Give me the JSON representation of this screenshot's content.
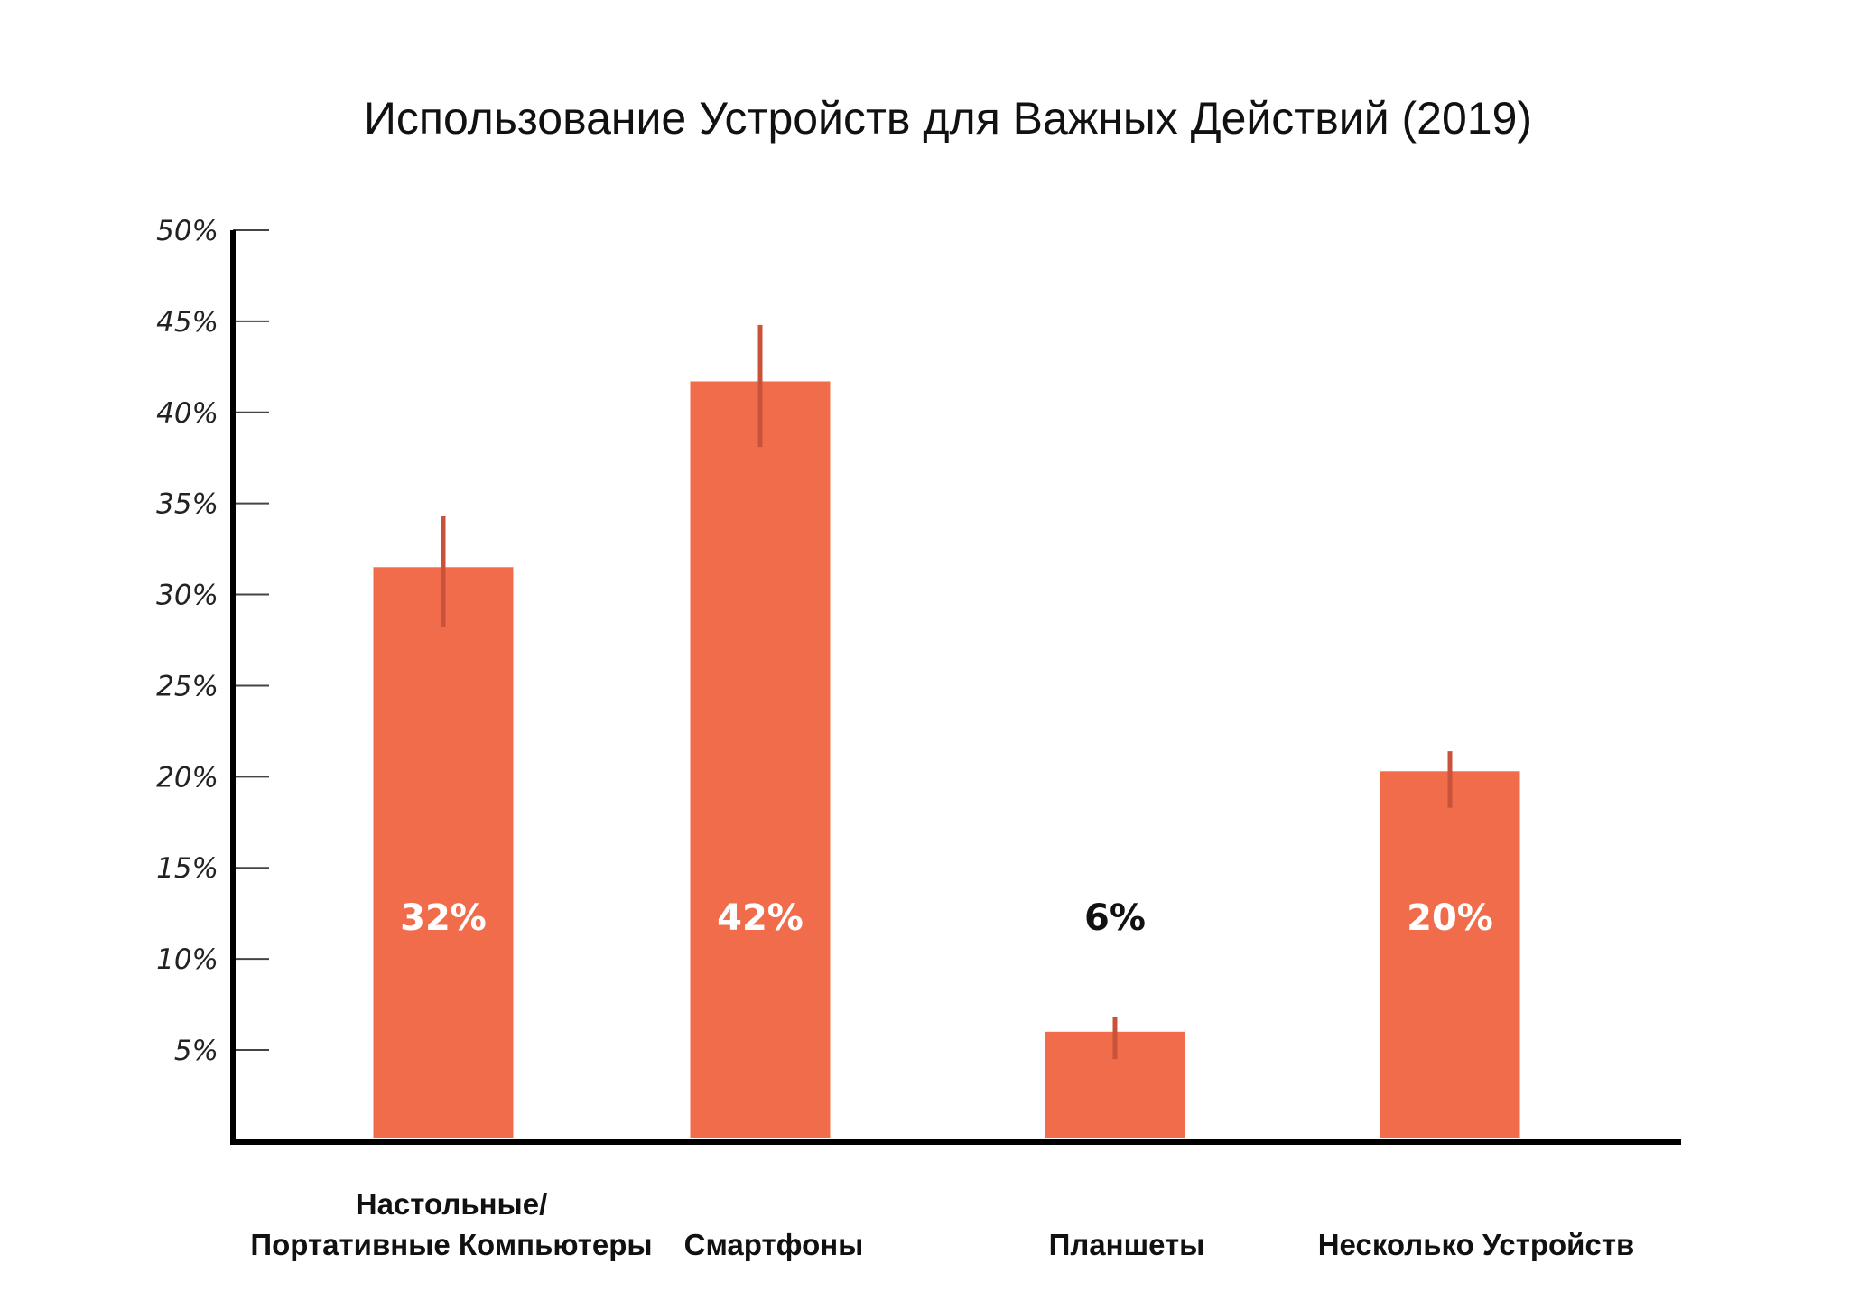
{
  "chart_data": {
    "type": "bar",
    "title": "Использование Устройств для Важных Действий (2019)",
    "xlabel": "",
    "ylabel": "",
    "ylim": [
      0,
      50
    ],
    "yticks": [
      5,
      10,
      15,
      20,
      25,
      30,
      35,
      40,
      45,
      50
    ],
    "ytick_labels": [
      "5%",
      "10%",
      "15%",
      "20%",
      "25%",
      "30%",
      "35%",
      "40%",
      "45%",
      "50%"
    ],
    "categories": [
      [
        "Настольные/",
        "Портативные Компьютеры"
      ],
      [
        "Смартфоны"
      ],
      [
        "Планшеты"
      ],
      [
        "Несколько Устройств"
      ]
    ],
    "values": [
      31.5,
      41.7,
      6.0,
      20.3
    ],
    "error_low": [
      28.2,
      38.1,
      4.5,
      18.3
    ],
    "error_high": [
      34.3,
      44.8,
      6.8,
      21.4
    ],
    "data_labels": [
      "32%",
      "42%",
      "6%",
      "20%"
    ],
    "grid": false,
    "legend": "none"
  },
  "colors": {
    "bar": "#f06c4b",
    "error_bar": "#c9523b",
    "label_inside": "#ffffff",
    "label_outside": "#111111",
    "axis": "#000000",
    "tick": "#444444"
  }
}
